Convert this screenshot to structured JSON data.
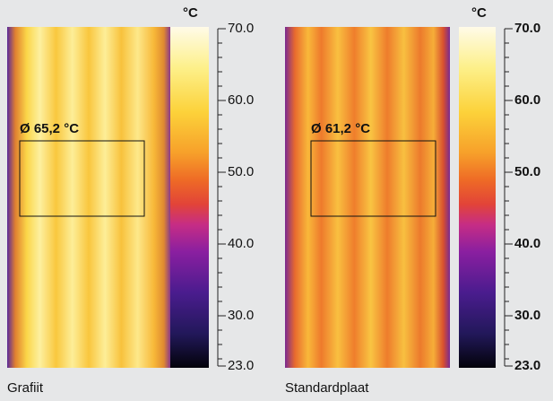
{
  "panels": [
    {
      "caption": "Grafiit",
      "measurement": "Ø 65,2 °C",
      "colorbar": {
        "unit": "°C",
        "min": 23,
        "max": 70,
        "ticks": [
          {
            "value": 70,
            "label": "70.0"
          },
          {
            "value": 60,
            "label": "60.0"
          },
          {
            "value": 50,
            "label": "50.0"
          },
          {
            "value": 40,
            "label": "40.0"
          },
          {
            "value": 30,
            "label": "30.0"
          },
          {
            "value": 23,
            "label": "23.0"
          }
        ]
      }
    },
    {
      "caption": "Standardplaat",
      "measurement": "Ø 61,2 °C",
      "colorbar": {
        "unit": "°C",
        "min": 23,
        "max": 70,
        "ticks": [
          {
            "value": 70,
            "label": "70.0"
          },
          {
            "value": 60,
            "label": "60.0"
          },
          {
            "value": 50,
            "label": "50.0"
          },
          {
            "value": 40,
            "label": "40.0"
          },
          {
            "value": 30,
            "label": "30.0"
          },
          {
            "value": 23,
            "label": "23.0"
          }
        ]
      }
    }
  ]
}
